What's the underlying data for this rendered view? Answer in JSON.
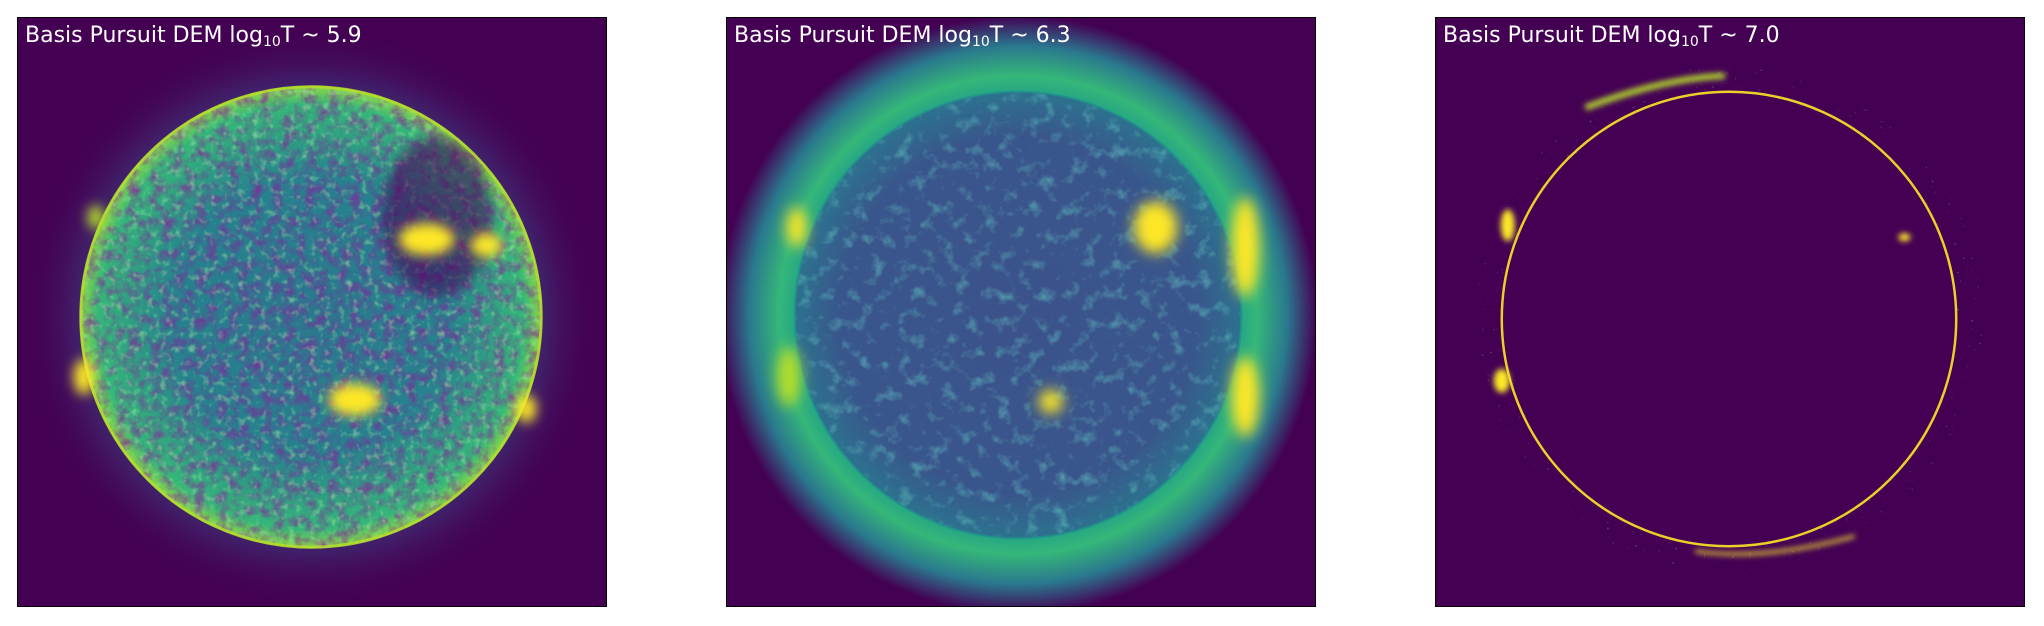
{
  "figure": {
    "colormap": "viridis",
    "background_color": "#440154",
    "colors": {
      "low": "#440154",
      "mid_low": "#3b528b",
      "mid": "#21918c",
      "mid_high": "#5ec962",
      "high": "#fde725"
    }
  },
  "panels": [
    {
      "title_prefix": "Basis Pursuit DEM log",
      "title_sub": "10",
      "title_suffix": "T ~ 5.9",
      "level": "low"
    },
    {
      "title_prefix": "Basis Pursuit DEM log",
      "title_sub": "10",
      "title_suffix": "T ~ 6.3",
      "level": "mid"
    },
    {
      "title_prefix": "Basis Pursuit DEM log",
      "title_sub": "10",
      "title_suffix": "T ~ 7.0",
      "level": "high"
    }
  ]
}
